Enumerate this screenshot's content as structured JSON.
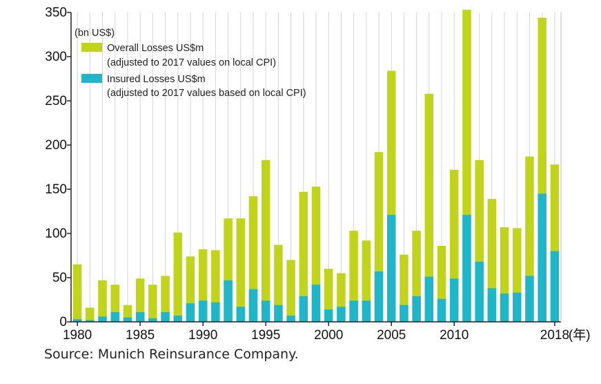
{
  "chart_data": {
    "type": "bar",
    "stacked": "overlay",
    "unit_label": "(bn US$)",
    "x_unit": "(年)",
    "x": [
      1980,
      1981,
      1982,
      1983,
      1984,
      1985,
      1986,
      1987,
      1988,
      1989,
      1990,
      1991,
      1992,
      1993,
      1994,
      1995,
      1996,
      1997,
      1998,
      1999,
      2000,
      2001,
      2002,
      2003,
      2004,
      2005,
      2006,
      2007,
      2008,
      2009,
      2010,
      2011,
      2012,
      2013,
      2014,
      2015,
      2016,
      2017,
      2018
    ],
    "x_tick_labels": [
      "1980",
      "1985",
      "1990",
      "1995",
      "2000",
      "2005",
      "2010",
      "2018"
    ],
    "x_tick_values": [
      1980,
      1985,
      1990,
      1995,
      2000,
      2005,
      2010,
      2018
    ],
    "y_ticks": [
      "0",
      "50",
      "100",
      "150",
      "200",
      "250",
      "300",
      "350"
    ],
    "ylim": [
      0,
      350
    ],
    "grid": "vertical",
    "legend_position": "top-left",
    "series": [
      {
        "name": "Overall Losses US$m",
        "name_line2": "(adjusted to 2017 values on local CPI)",
        "color": "#bfd41a",
        "values": [
          65,
          16,
          47,
          42,
          19,
          49,
          42,
          52,
          101,
          74,
          82,
          81,
          117,
          117,
          142,
          183,
          87,
          70,
          147,
          153,
          60,
          55,
          103,
          92,
          192,
          284,
          76,
          103,
          258,
          86,
          172,
          353,
          183,
          139,
          107,
          106,
          187,
          344,
          178
        ]
      },
      {
        "name": "Insured Losses US$m",
        "name_line2": "(adjusted to 2017 values based on local CPI)",
        "color": "#1fb6c9",
        "values": [
          3,
          2,
          6,
          11,
          5,
          11,
          4,
          11,
          7,
          21,
          24,
          22,
          47,
          17,
          37,
          24,
          19,
          7,
          29,
          42,
          14,
          17,
          24,
          24,
          57,
          121,
          19,
          29,
          51,
          26,
          49,
          121,
          68,
          38,
          32,
          33,
          52,
          145,
          80
        ]
      }
    ],
    "source": "Source: Munich Reinsurance Company."
  }
}
